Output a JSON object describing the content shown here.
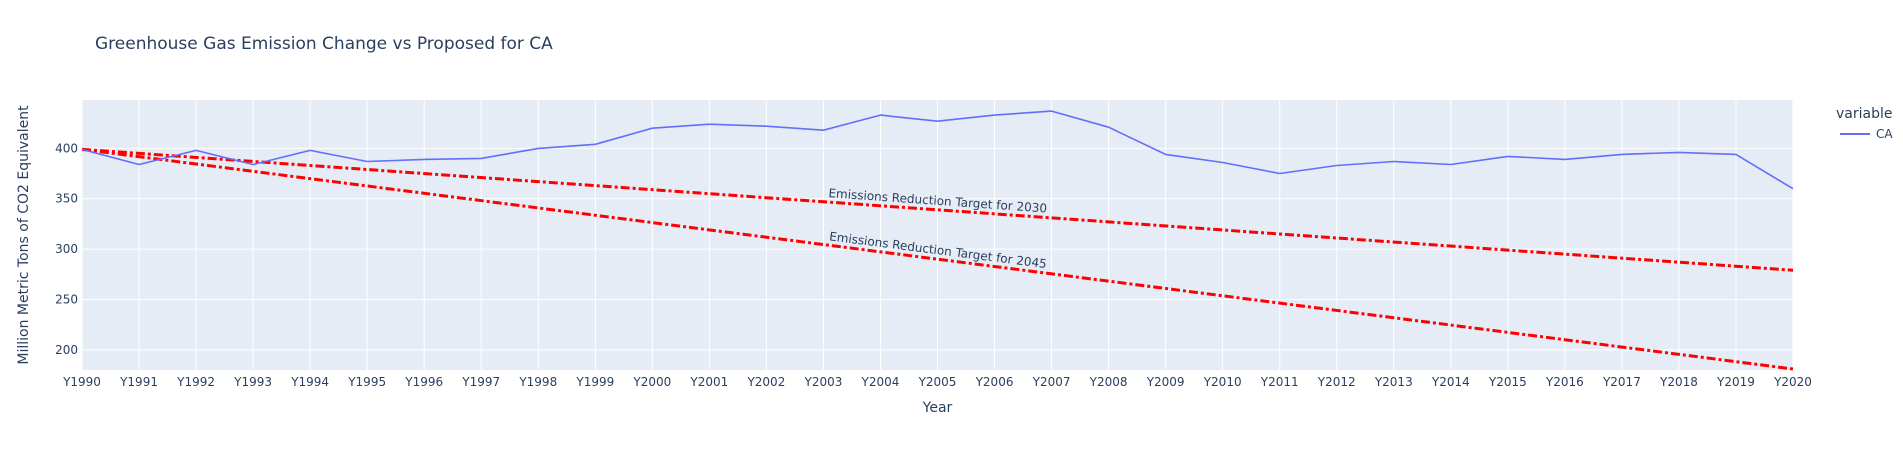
{
  "chart_data": {
    "type": "line",
    "title": "Greenhouse Gas Emission Change vs Proposed for CA",
    "xlabel": "Year",
    "ylabel": "Million Metric Tons of CO2 Equivalent",
    "categories": [
      "Y1990",
      "Y1991",
      "Y1992",
      "Y1993",
      "Y1994",
      "Y1995",
      "Y1996",
      "Y1997",
      "Y1998",
      "Y1999",
      "Y2000",
      "Y2001",
      "Y2002",
      "Y2003",
      "Y2004",
      "Y2005",
      "Y2006",
      "Y2007",
      "Y2008",
      "Y2009",
      "Y2010",
      "Y2011",
      "Y2012",
      "Y2013",
      "Y2014",
      "Y2015",
      "Y2016",
      "Y2017",
      "Y2018",
      "Y2019",
      "Y2020"
    ],
    "ylim": [
      180,
      448
    ],
    "yticks": [
      200,
      250,
      300,
      350,
      400
    ],
    "grid": true,
    "legend_title": "variable",
    "legend_position": "top-right",
    "series": [
      {
        "name": "CA",
        "color": "#636efa",
        "values": [
          399,
          384,
          398,
          384,
          398,
          387,
          389,
          390,
          400,
          404,
          420,
          424,
          422,
          418,
          433,
          427,
          433,
          437,
          421,
          394,
          386,
          375,
          383,
          387,
          384,
          392,
          389,
          394,
          396,
          394,
          360
        ]
      }
    ],
    "target_lines": [
      {
        "label": "Emissions Reduction Target for 2030",
        "color": "#ff0000",
        "start": 399,
        "end": 279
      },
      {
        "label": "Emissions Reduction Target for 2045",
        "color": "#ff0000",
        "start": 399,
        "end": 181
      }
    ]
  }
}
